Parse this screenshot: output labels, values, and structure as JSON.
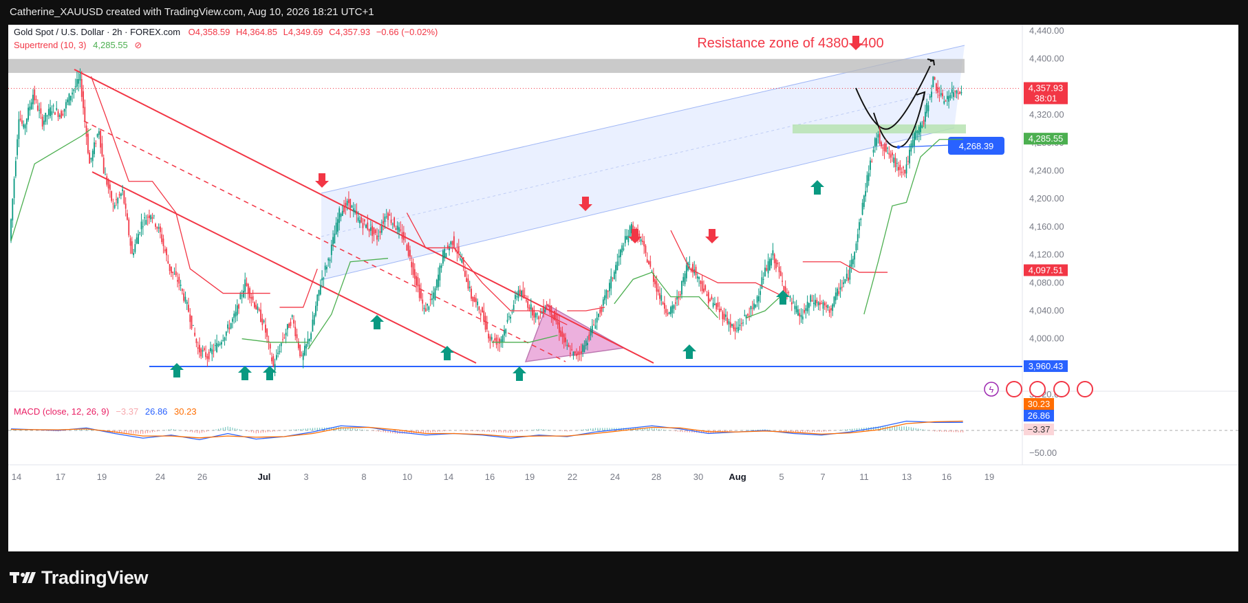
{
  "header": {
    "attribution": "Catherine_XAUUSD created with TradingView.com, Aug 10, 2026 18:21 UTC+1"
  },
  "legend": {
    "symbol": "Gold Spot / U.S. Dollar · 2h · FOREX.com",
    "open": "O4,358.59",
    "high": "H4,364.85",
    "low": "L4,349.69",
    "close": "C4,357.93",
    "change": "−0.66 (−0.02%)",
    "supertrend_label": "Supertrend (10, 3)",
    "supertrend_value": "4,285.55",
    "macd_label": "MACD (close, 12, 26, 9)",
    "macd_hist": "−3.37",
    "macd_line": "26.86",
    "macd_signal": "30.23"
  },
  "annotations": {
    "resistance_text": "Resistance zone of 4380-4400",
    "target_label": "4,268.39"
  },
  "footer": {
    "brand": "TradingView"
  },
  "colors": {
    "up": "#089981",
    "down": "#f23645",
    "macd": "#2962ff",
    "signal": "#ff6d00",
    "supertrend_up": "#4caf50",
    "supertrend_down": "#f23645",
    "trendline": "#f23645",
    "support": "#2962ff",
    "channel_fill": "#d9e4ff",
    "resistance_zone": "#b8b8b8",
    "demand_zone": "#b7e3b1",
    "arrow_up": "#089981",
    "arrow_down": "#f23645"
  },
  "chart_data": {
    "type": "candlestick",
    "title": "Gold Spot / U.S. Dollar · 2h · FOREX.com",
    "timeframe": "2h",
    "y_axis": {
      "ticks": [
        "4,440.00",
        "4,400.00",
        "4,360.00",
        "4,320.00",
        "4,280.00",
        "4,240.00",
        "4,200.00",
        "4,160.00",
        "4,120.00",
        "4,080.00",
        "4,040.00",
        "4,000.00",
        "3,960.00",
        "3,920.00"
      ],
      "range": [
        3905,
        4455
      ]
    },
    "price_labels": [
      {
        "value": "4,357.93",
        "sub": "38:01",
        "color": "#f23645"
      },
      {
        "value": "4,285.55",
        "color": "#4caf50"
      },
      {
        "value": "4,097.51",
        "color": "#f23645"
      },
      {
        "value": "3,960.43",
        "color": "#2962ff"
      }
    ],
    "macd_axis": {
      "ticks": [
        "−50.00"
      ],
      "labels": [
        {
          "value": "30.23",
          "color": "#ff6d00"
        },
        {
          "value": "26.86",
          "color": "#2962ff"
        },
        {
          "value": "−3.37",
          "color": "#f7a8ad"
        }
      ]
    },
    "x_axis": {
      "ticks": [
        "14",
        "17",
        "19",
        "24",
        "26",
        "Jul",
        "3",
        "8",
        "10",
        "14",
        "16",
        "19",
        "22",
        "24",
        "28",
        "30",
        "Aug",
        "5",
        "7",
        "11",
        "13",
        "16",
        "19"
      ]
    },
    "price_path": [
      [
        0,
        4140
      ],
      [
        2,
        4320
      ],
      [
        3,
        4300
      ],
      [
        5,
        4350
      ],
      [
        7,
        4310
      ],
      [
        9,
        4330
      ],
      [
        11,
        4320
      ],
      [
        13,
        4350
      ],
      [
        15,
        4372
      ],
      [
        17,
        4250
      ],
      [
        19,
        4300
      ],
      [
        20,
        4240
      ],
      [
        22,
        4190
      ],
      [
        24,
        4210
      ],
      [
        26,
        4120
      ],
      [
        28,
        4165
      ],
      [
        30,
        4180
      ],
      [
        32,
        4150
      ],
      [
        34,
        4100
      ],
      [
        36,
        4080
      ],
      [
        38,
        4040
      ],
      [
        40,
        3985
      ],
      [
        42,
        3975
      ],
      [
        44,
        3990
      ],
      [
        46,
        4010
      ],
      [
        48,
        4035
      ],
      [
        50,
        4080
      ],
      [
        52,
        4050
      ],
      [
        54,
        4020
      ],
      [
        56,
        3960
      ],
      [
        58,
        4000
      ],
      [
        60,
        4030
      ],
      [
        62,
        3970
      ],
      [
        64,
        4010
      ],
      [
        66,
        4080
      ],
      [
        68,
        4120
      ],
      [
        70,
        4180
      ],
      [
        72,
        4195
      ],
      [
        74,
        4170
      ],
      [
        76,
        4160
      ],
      [
        78,
        4145
      ],
      [
        80,
        4180
      ],
      [
        82,
        4160
      ],
      [
        84,
        4140
      ],
      [
        86,
        4090
      ],
      [
        88,
        4040
      ],
      [
        90,
        4060
      ],
      [
        92,
        4120
      ],
      [
        94,
        4140
      ],
      [
        96,
        4110
      ],
      [
        98,
        4060
      ],
      [
        100,
        4040
      ],
      [
        102,
        4000
      ],
      [
        104,
        3995
      ],
      [
        106,
        4030
      ],
      [
        108,
        4070
      ],
      [
        110,
        4050
      ],
      [
        112,
        4030
      ],
      [
        114,
        4050
      ],
      [
        116,
        4025
      ],
      [
        118,
        3990
      ],
      [
        120,
        3975
      ],
      [
        122,
        3990
      ],
      [
        124,
        4020
      ],
      [
        126,
        4050
      ],
      [
        128,
        4090
      ],
      [
        130,
        4130
      ],
      [
        132,
        4160
      ],
      [
        134,
        4140
      ],
      [
        136,
        4100
      ],
      [
        138,
        4060
      ],
      [
        140,
        4035
      ],
      [
        142,
        4060
      ],
      [
        144,
        4110
      ],
      [
        146,
        4090
      ],
      [
        148,
        4060
      ],
      [
        150,
        4045
      ],
      [
        152,
        4030
      ],
      [
        154,
        4010
      ],
      [
        156,
        4030
      ],
      [
        158,
        4045
      ],
      [
        160,
        4090
      ],
      [
        162,
        4120
      ],
      [
        164,
        4080
      ],
      [
        166,
        4050
      ],
      [
        168,
        4030
      ],
      [
        170,
        4055
      ],
      [
        172,
        4050
      ],
      [
        174,
        4040
      ],
      [
        176,
        4070
      ],
      [
        178,
        4090
      ],
      [
        180,
        4150
      ],
      [
        182,
        4230
      ],
      [
        184,
        4290
      ],
      [
        186,
        4270
      ],
      [
        188,
        4250
      ],
      [
        190,
        4240
      ],
      [
        192,
        4290
      ],
      [
        194,
        4310
      ],
      [
        196,
        4370
      ],
      [
        198,
        4340
      ],
      [
        200,
        4350
      ],
      [
        202,
        4358
      ]
    ],
    "supertrend": [
      {
        "dir": "up",
        "points": [
          [
            0,
            4140
          ],
          [
            5,
            4250
          ],
          [
            10,
            4270
          ],
          [
            15,
            4290
          ],
          [
            17,
            4300
          ]
        ]
      },
      {
        "dir": "down",
        "points": [
          [
            17,
            4375
          ],
          [
            20,
            4320
          ],
          [
            25,
            4225
          ],
          [
            30,
            4225
          ],
          [
            35,
            4180
          ],
          [
            38,
            4100
          ],
          [
            45,
            4065
          ],
          [
            55,
            4065
          ]
        ]
      },
      {
        "dir": "up",
        "points": [
          [
            49,
            4000
          ],
          [
            55,
            3995
          ],
          [
            63,
            3995
          ]
        ]
      },
      {
        "dir": "down",
        "points": [
          [
            57,
            4045
          ],
          [
            62,
            4045
          ],
          [
            65,
            4100
          ]
        ]
      },
      {
        "dir": "up",
        "points": [
          [
            63,
            3985
          ],
          [
            68,
            4035
          ],
          [
            72,
            4110
          ],
          [
            80,
            4115
          ]
        ]
      },
      {
        "dir": "down",
        "points": [
          [
            84,
            4180
          ],
          [
            88,
            4130
          ],
          [
            94,
            4130
          ],
          [
            100,
            4080
          ],
          [
            106,
            4040
          ],
          [
            112,
            4040
          ],
          [
            118,
            4020
          ]
        ]
      },
      {
        "dir": "up",
        "points": [
          [
            102,
            3995
          ],
          [
            110,
            3995
          ],
          [
            116,
            4005
          ]
        ]
      },
      {
        "dir": "down",
        "points": [
          [
            118,
            4040
          ],
          [
            122,
            4040
          ],
          [
            126,
            4045
          ]
        ]
      },
      {
        "dir": "up",
        "points": [
          [
            128,
            4050
          ],
          [
            132,
            4085
          ],
          [
            136,
            4095
          ],
          [
            140,
            4060
          ],
          [
            146,
            4060
          ],
          [
            150,
            4030
          ]
        ]
      },
      {
        "dir": "down",
        "points": [
          [
            140,
            4155
          ],
          [
            144,
            4100
          ],
          [
            150,
            4080
          ],
          [
            158,
            4080
          ],
          [
            164,
            4060
          ]
        ]
      },
      {
        "dir": "up",
        "points": [
          [
            156,
            4030
          ],
          [
            160,
            4040
          ],
          [
            164,
            4065
          ]
        ]
      },
      {
        "dir": "down",
        "points": [
          [
            168,
            4110
          ],
          [
            176,
            4110
          ],
          [
            180,
            4095
          ],
          [
            186,
            4095
          ]
        ]
      },
      {
        "dir": "up",
        "points": [
          [
            181,
            4035
          ],
          [
            184,
            4110
          ],
          [
            187,
            4190
          ],
          [
            190,
            4195
          ],
          [
            193,
            4260
          ],
          [
            197,
            4285
          ],
          [
            202,
            4285
          ]
        ]
      }
    ],
    "macd_series": {
      "macd": [
        [
          0,
          5
        ],
        [
          10,
          0
        ],
        [
          16,
          8
        ],
        [
          22,
          -10
        ],
        [
          28,
          -25
        ],
        [
          34,
          -15
        ],
        [
          40,
          -30
        ],
        [
          46,
          -10
        ],
        [
          52,
          -28
        ],
        [
          58,
          -20
        ],
        [
          64,
          -5
        ],
        [
          70,
          15
        ],
        [
          76,
          10
        ],
        [
          82,
          -5
        ],
        [
          88,
          -15
        ],
        [
          94,
          -10
        ],
        [
          100,
          -15
        ],
        [
          106,
          -25
        ],
        [
          112,
          -15
        ],
        [
          118,
          -20
        ],
        [
          124,
          -5
        ],
        [
          130,
          5
        ],
        [
          136,
          15
        ],
        [
          142,
          5
        ],
        [
          148,
          -10
        ],
        [
          154,
          -5
        ],
        [
          160,
          0
        ],
        [
          166,
          -10
        ],
        [
          172,
          -15
        ],
        [
          178,
          -5
        ],
        [
          184,
          10
        ],
        [
          190,
          30
        ],
        [
          196,
          26
        ],
        [
          202,
          26
        ]
      ],
      "signal": [
        [
          0,
          3
        ],
        [
          10,
          2
        ],
        [
          16,
          5
        ],
        [
          22,
          -5
        ],
        [
          28,
          -18
        ],
        [
          34,
          -18
        ],
        [
          40,
          -24
        ],
        [
          46,
          -18
        ],
        [
          52,
          -22
        ],
        [
          58,
          -20
        ],
        [
          64,
          -10
        ],
        [
          70,
          8
        ],
        [
          76,
          10
        ],
        [
          82,
          2
        ],
        [
          88,
          -10
        ],
        [
          94,
          -10
        ],
        [
          100,
          -13
        ],
        [
          106,
          -20
        ],
        [
          112,
          -18
        ],
        [
          118,
          -18
        ],
        [
          124,
          -10
        ],
        [
          130,
          0
        ],
        [
          136,
          10
        ],
        [
          142,
          8
        ],
        [
          148,
          -4
        ],
        [
          154,
          -5
        ],
        [
          160,
          -2
        ],
        [
          166,
          -6
        ],
        [
          172,
          -12
        ],
        [
          178,
          -8
        ],
        [
          184,
          2
        ],
        [
          190,
          22
        ],
        [
          196,
          28
        ],
        [
          202,
          30
        ]
      ]
    }
  }
}
